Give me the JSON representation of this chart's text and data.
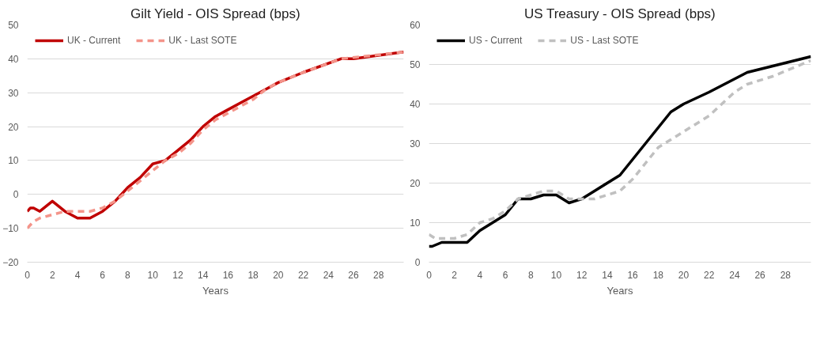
{
  "chart_data": [
    {
      "type": "line",
      "title": "Gilt Yield - OIS Spread (bps)",
      "xlabel": "Years",
      "xlim": [
        0,
        30
      ],
      "xticks": [
        0,
        2,
        4,
        6,
        8,
        10,
        12,
        14,
        16,
        18,
        20,
        22,
        24,
        26,
        28
      ],
      "ylim": [
        -20,
        50
      ],
      "yticks": [
        -20,
        -10,
        0,
        10,
        20,
        30,
        40,
        50
      ],
      "grid": "y",
      "legend": "top left",
      "series": [
        {
          "name": "UK - Current",
          "color": "#c00000",
          "line_style": "solid",
          "x": [
            0,
            0.25,
            0.5,
            1,
            2,
            3,
            4,
            5,
            6,
            7,
            8,
            9,
            10,
            11,
            12,
            13,
            14,
            15,
            16,
            17,
            18,
            19,
            20,
            22,
            25,
            26,
            30
          ],
          "values": [
            -5,
            -4,
            -4,
            -5,
            -2,
            -5,
            -7,
            -7,
            -5,
            -2,
            2,
            5,
            9,
            10,
            13,
            16,
            20,
            23,
            25,
            27,
            29,
            31,
            33,
            36,
            40,
            40,
            42
          ]
        },
        {
          "name": "UK - Last SOTE",
          "color": "#f4948a",
          "line_style": "dashed",
          "x": [
            0,
            0.5,
            1,
            2,
            3,
            4,
            5,
            6,
            7,
            8,
            9,
            10,
            11,
            12,
            13,
            14,
            15,
            16,
            17,
            18,
            19,
            20,
            22,
            25,
            30
          ],
          "values": [
            -10,
            -8,
            -7,
            -6,
            -5,
            -5,
            -5,
            -4,
            -2,
            1,
            4,
            7,
            10,
            12,
            15,
            19,
            22,
            24,
            26,
            28,
            31,
            33,
            36,
            40,
            42
          ]
        }
      ]
    },
    {
      "type": "line",
      "title": "US Treasury - OIS Spread (bps)",
      "xlabel": "Years",
      "xlim": [
        0,
        30
      ],
      "xticks": [
        0,
        2,
        4,
        6,
        8,
        10,
        12,
        14,
        16,
        18,
        20,
        22,
        24,
        26,
        28
      ],
      "ylim": [
        0,
        60
      ],
      "yticks": [
        0,
        10,
        20,
        30,
        40,
        50,
        60
      ],
      "grid": "y",
      "legend": "top left",
      "series": [
        {
          "name": "US - Current",
          "color": "#000000",
          "line_style": "solid",
          "x": [
            0,
            0.25,
            1,
            2,
            3,
            4,
            5,
            6,
            6.5,
            7,
            8,
            9,
            10,
            11,
            12,
            13,
            15,
            16,
            17,
            18,
            19,
            20,
            22,
            25,
            30
          ],
          "values": [
            4,
            4,
            5,
            5,
            5,
            8,
            10,
            12,
            14,
            16,
            16,
            17,
            17,
            15,
            16,
            18,
            22,
            26,
            30,
            34,
            38,
            40,
            43,
            48,
            52
          ]
        },
        {
          "name": "US - Last SOTE",
          "color": "#c0c0c0",
          "line_style": "dashed",
          "x": [
            0,
            0.5,
            1,
            2,
            3,
            4,
            5,
            6,
            7,
            8,
            9,
            10,
            11,
            12,
            13,
            15,
            16,
            17,
            18,
            19,
            20,
            22,
            24,
            25,
            27,
            30
          ],
          "values": [
            7,
            6,
            6,
            6,
            7,
            10,
            11,
            13,
            16,
            17,
            18,
            18,
            16,
            16,
            16,
            18,
            21,
            25,
            29,
            31,
            33,
            37,
            43,
            45,
            47,
            51
          ]
        }
      ]
    }
  ]
}
